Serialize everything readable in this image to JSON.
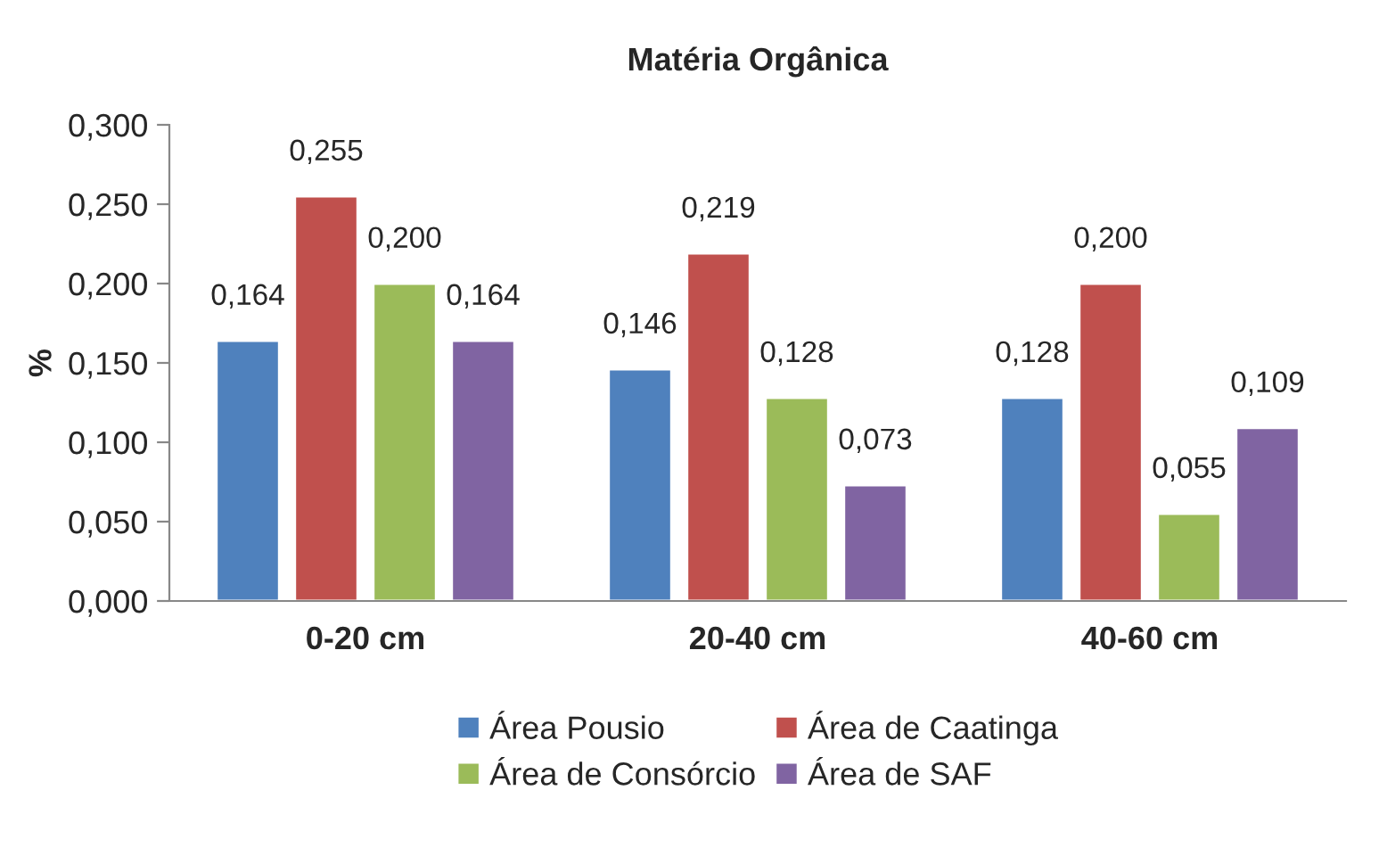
{
  "chart_data": {
    "type": "bar",
    "title": "Matéria Orgânica",
    "ylabel": "%",
    "categories": [
      "0-20 cm",
      "20-40 cm",
      "40-60 cm"
    ],
    "series": [
      {
        "name": "Área Pousio",
        "color": "#4f81bd",
        "values": [
          0.164,
          0.146,
          0.128
        ],
        "value_labels": [
          "0,164",
          "0,146",
          "0,128"
        ]
      },
      {
        "name": "Área de Caatinga",
        "color": "#c0504d",
        "values": [
          0.255,
          0.219,
          0.2
        ],
        "value_labels": [
          "0,255",
          "0,219",
          "0,200"
        ]
      },
      {
        "name": "Área de Consórcio",
        "color": "#9bbb59",
        "values": [
          0.2,
          0.128,
          0.055
        ],
        "value_labels": [
          "0,200",
          "0,128",
          "0,055"
        ]
      },
      {
        "name": "Área de SAF",
        "color": "#8064a2",
        "values": [
          0.164,
          0.073,
          0.109
        ],
        "value_labels": [
          "0,164",
          "0,073",
          "0,109"
        ]
      }
    ],
    "ylim": [
      0,
      0.3
    ],
    "yticks": [
      {
        "value": 0,
        "label": "0,000"
      },
      {
        "value": 0.05,
        "label": "0,050"
      },
      {
        "value": 0.1,
        "label": "0,100"
      },
      {
        "value": 0.15,
        "label": "0,150"
      },
      {
        "value": 0.2,
        "label": "0,200"
      },
      {
        "value": 0.25,
        "label": "0,250"
      },
      {
        "value": 0.3,
        "label": "0,300"
      }
    ],
    "grid": false,
    "legend": "bottom"
  }
}
